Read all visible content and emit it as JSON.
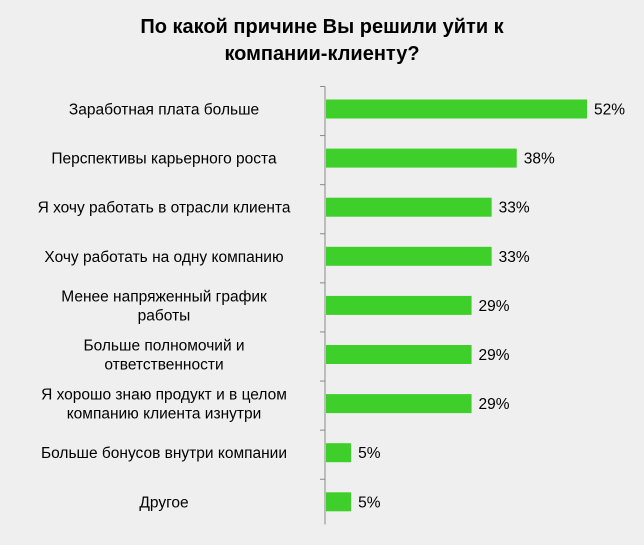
{
  "chart_data": {
    "type": "bar",
    "orientation": "horizontal",
    "title_lines": [
      "По какой причине Вы решили уйти к",
      "компании-клиенту?"
    ],
    "categories": [
      [
        "Заработная плата больше"
      ],
      [
        "Перспективы карьерного роста"
      ],
      [
        "Я хочу работать в отрасли клиента"
      ],
      [
        "Хочу работать на одну компанию"
      ],
      [
        "Менее напряженный  график",
        "работы"
      ],
      [
        "Больше полномочий  и",
        "ответственности"
      ],
      [
        "Я хорошо знаю продукт и в целом",
        "компанию клиента изнутри"
      ],
      [
        "Больше бонусов внутри компании"
      ],
      [
        "Другое"
      ]
    ],
    "values": [
      52,
      38,
      33,
      33,
      29,
      29,
      29,
      5,
      5
    ],
    "value_labels": [
      "52%",
      "38%",
      "33%",
      "33%",
      "29%",
      "29%",
      "29%",
      "5%",
      "5%"
    ],
    "xlim": [
      0,
      52
    ],
    "bar_color": "#3ecf2a",
    "axis_color": "#888888",
    "grid": false,
    "legend": false
  }
}
